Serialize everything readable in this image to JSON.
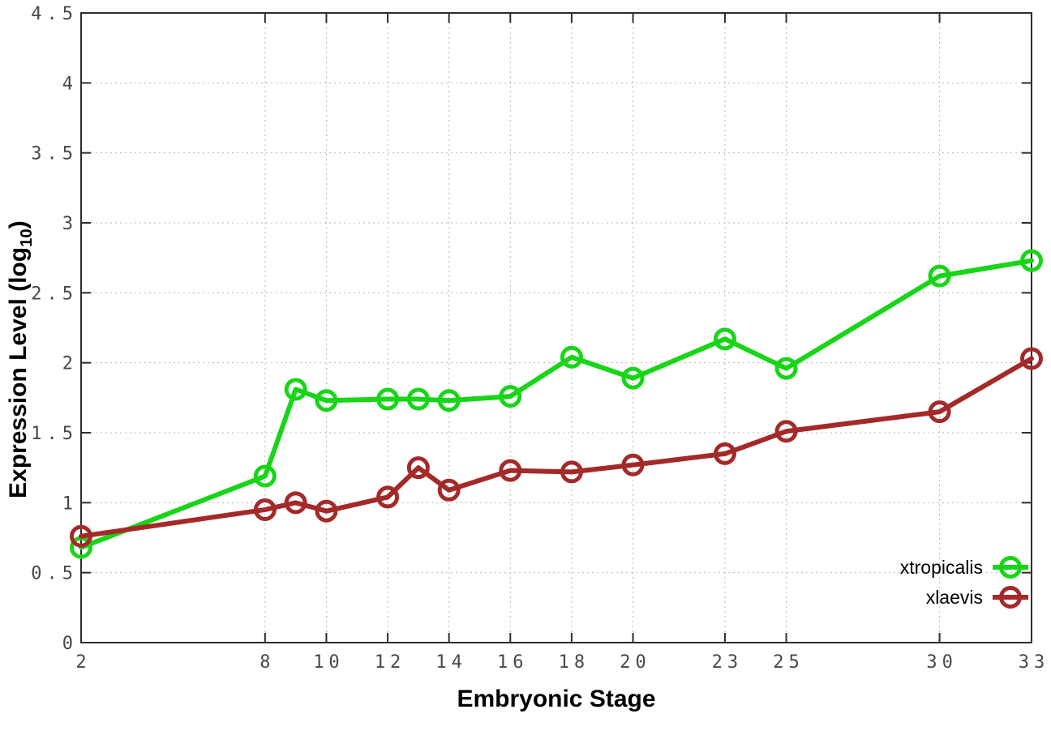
{
  "style": {
    "background": "#ffffff",
    "axis_color": "#2d2d2d",
    "grid_color": "#b8b8b8",
    "tick_label_color": "#484848",
    "series_green": "#18d518",
    "series_red": "#a42a2a"
  },
  "chart_data": {
    "type": "line",
    "title": "",
    "xlabel": "Embryonic Stage",
    "ylabel": "Expression Level (log10)",
    "ylabel_parts": {
      "prefix": "Expression Level (log",
      "sub": "10",
      "suffix": ")"
    },
    "x": [
      2,
      8,
      9,
      10,
      12,
      13,
      14,
      16,
      18,
      20,
      23,
      25,
      30,
      33
    ],
    "series": [
      {
        "name": "xtropicalis",
        "color": "#18d518",
        "values": [
          0.68,
          1.19,
          1.81,
          1.73,
          1.74,
          1.74,
          1.73,
          1.76,
          2.04,
          1.89,
          2.17,
          1.96,
          2.62,
          2.73
        ]
      },
      {
        "name": "xlaevis",
        "color": "#a42a2a",
        "values": [
          0.76,
          0.95,
          1.0,
          0.94,
          1.04,
          1.25,
          1.09,
          1.23,
          1.22,
          1.27,
          1.35,
          1.51,
          1.65,
          2.03
        ]
      }
    ],
    "xlim": [
      2,
      33
    ],
    "ylim": [
      0,
      4.5
    ],
    "x_tick_values": [
      2,
      8,
      10,
      12,
      14,
      16,
      18,
      20,
      23,
      25,
      30,
      33
    ],
    "x_tick_labels": [
      "2",
      "8",
      "10",
      "12",
      "14",
      "16",
      "18",
      "20",
      "23",
      "25",
      "30",
      "33"
    ],
    "y_tick_values": [
      0,
      0.5,
      1,
      1.5,
      2,
      2.5,
      3,
      3.5,
      4,
      4.5
    ],
    "y_tick_labels": [
      "0",
      "0.5",
      "1",
      "1.5",
      "2",
      "2.5",
      "3",
      "3.5",
      "4",
      "4.5"
    ],
    "grid": true,
    "marker": "open-circle",
    "legend_position": "bottom-right",
    "legend_entries": [
      "xtropicalis",
      "xlaevis"
    ]
  }
}
